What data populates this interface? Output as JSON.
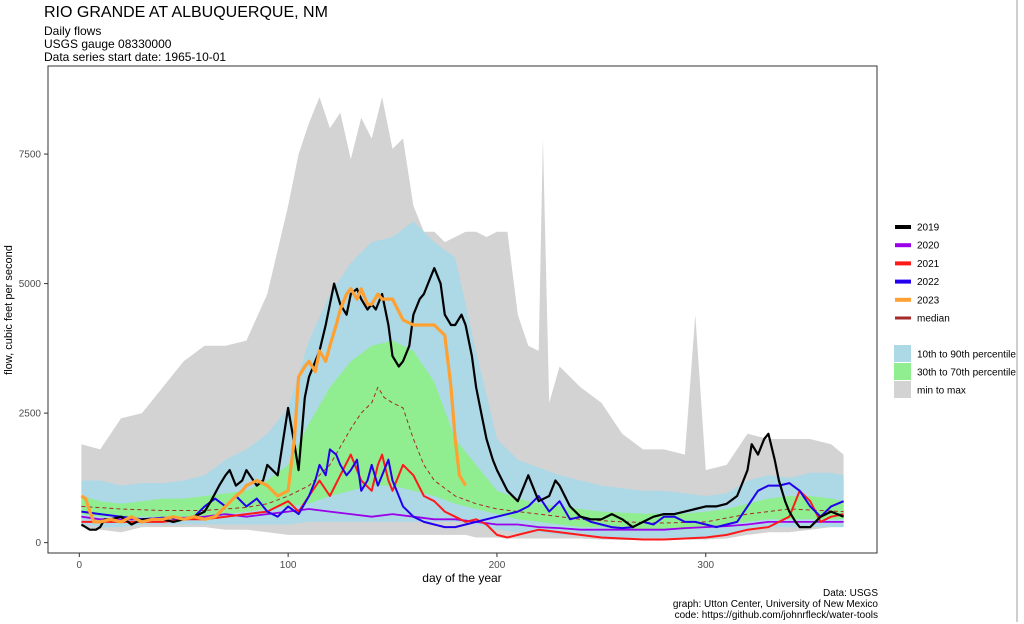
{
  "chart_data": {
    "type": "area",
    "title": "RIO GRANDE AT ALBUQUERQUE, NM",
    "subtitle": [
      "Daily flows",
      "USGS gauge  08330000",
      "Data series start date:  1965-10-01"
    ],
    "xlabel": "day of the year",
    "ylabel": "flow, cubic feet per second",
    "xlim": [
      -15,
      382
    ],
    "ylim": [
      -200,
      9200
    ],
    "x_ticks": [
      0,
      100,
      200,
      300
    ],
    "y_ticks": [
      0,
      2500,
      5000,
      7500
    ],
    "grid": true,
    "legend_position": "right",
    "legend_lines": [
      {
        "name": "2019",
        "color": "#000000"
      },
      {
        "name": "2020",
        "color": "#9b00e8"
      },
      {
        "name": "2021",
        "color": "#ff1a1a"
      },
      {
        "name": "2022",
        "color": "#2200ee"
      },
      {
        "name": "2023",
        "color": "#ffa032"
      },
      {
        "name": "median",
        "color": "#a52a2a"
      }
    ],
    "legend_bands": [
      {
        "name": "10th to 90th percentile",
        "color": "#add8e6"
      },
      {
        "name": "30th to 70th percentile",
        "color": "#90ee90"
      },
      {
        "name": "min to max",
        "color": "#d3d3d3"
      }
    ],
    "bands": {
      "min_max": {
        "x": [
          1,
          10,
          20,
          30,
          40,
          50,
          60,
          70,
          80,
          90,
          100,
          105,
          110,
          115,
          120,
          125,
          130,
          135,
          140,
          145,
          150,
          155,
          160,
          165,
          170,
          175,
          180,
          185,
          190,
          195,
          200,
          205,
          210,
          215,
          220,
          222,
          225,
          230,
          240,
          250,
          260,
          270,
          280,
          290,
          295,
          300,
          310,
          320,
          330,
          340,
          350,
          360,
          366
        ],
        "low": [
          300,
          250,
          200,
          300,
          300,
          300,
          300,
          250,
          250,
          200,
          150,
          150,
          150,
          150,
          150,
          150,
          150,
          150,
          150,
          150,
          150,
          150,
          150,
          150,
          150,
          150,
          150,
          150,
          100,
          100,
          100,
          80,
          80,
          80,
          80,
          80,
          80,
          80,
          80,
          60,
          50,
          50,
          50,
          60,
          60,
          60,
          80,
          150,
          200,
          200,
          250,
          300,
          300
        ],
        "high": [
          1900,
          1800,
          2400,
          2500,
          3000,
          3500,
          3800,
          3800,
          3900,
          4800,
          6500,
          7500,
          8100,
          8600,
          8000,
          8300,
          7400,
          8200,
          7800,
          8600,
          7600,
          7800,
          6500,
          6000,
          6000,
          5800,
          5900,
          6000,
          6000,
          5900,
          6000,
          6000,
          4400,
          3800,
          3700,
          7800,
          2700,
          3400,
          3000,
          2700,
          2100,
          1800,
          1800,
          1700,
          4400,
          1400,
          1500,
          2100,
          2000,
          2000,
          2000,
          1900,
          1700
        ]
      },
      "p10_p90": {
        "x": [
          1,
          10,
          20,
          30,
          40,
          50,
          60,
          70,
          80,
          90,
          100,
          110,
          120,
          130,
          140,
          150,
          160,
          170,
          180,
          190,
          200,
          210,
          220,
          230,
          240,
          250,
          260,
          270,
          280,
          290,
          300,
          310,
          320,
          330,
          340,
          350,
          360,
          366
        ],
        "low": [
          350,
          300,
          300,
          350,
          350,
          350,
          350,
          350,
          350,
          350,
          350,
          400,
          400,
          400,
          400,
          400,
          400,
          400,
          400,
          350,
          250,
          200,
          200,
          150,
          150,
          100,
          100,
          100,
          100,
          100,
          100,
          150,
          250,
          300,
          300,
          300,
          300,
          300
        ],
        "high": [
          1200,
          1200,
          1100,
          1150,
          1150,
          1200,
          1300,
          1600,
          1800,
          2100,
          2600,
          3900,
          4800,
          5400,
          5800,
          5900,
          6200,
          5800,
          5500,
          3700,
          2000,
          1600,
          1450,
          1300,
          1200,
          1100,
          1050,
          1000,
          1000,
          950,
          900,
          950,
          1200,
          1300,
          1250,
          1350,
          1350,
          1300
        ]
      },
      "p30_p70": {
        "x": [
          1,
          10,
          20,
          30,
          40,
          50,
          60,
          70,
          80,
          90,
          100,
          110,
          120,
          130,
          140,
          150,
          160,
          170,
          180,
          190,
          200,
          210,
          220,
          230,
          240,
          250,
          260,
          270,
          280,
          290,
          300,
          310,
          320,
          330,
          340,
          350,
          360,
          366
        ],
        "low": [
          550,
          500,
          500,
          500,
          500,
          500,
          520,
          550,
          600,
          650,
          700,
          750,
          900,
          1000,
          1100,
          1100,
          1000,
          900,
          750,
          650,
          550,
          450,
          400,
          350,
          300,
          300,
          250,
          250,
          250,
          250,
          300,
          350,
          400,
          450,
          450,
          450,
          450,
          450
        ],
        "high": [
          900,
          800,
          750,
          800,
          850,
          850,
          900,
          950,
          1000,
          1200,
          1500,
          2300,
          3000,
          3500,
          3800,
          3900,
          3700,
          3100,
          2000,
          1500,
          1000,
          850,
          750,
          700,
          650,
          600,
          580,
          560,
          560,
          560,
          600,
          650,
          750,
          850,
          900,
          900,
          850,
          800
        ]
      }
    },
    "series": [
      {
        "name": "median",
        "style": "dashed",
        "x": [
          1,
          20,
          40,
          60,
          80,
          90,
          100,
          110,
          120,
          130,
          135,
          140,
          143,
          146,
          150,
          155,
          160,
          165,
          170,
          180,
          190,
          200,
          220,
          240,
          260,
          280,
          300,
          320,
          340,
          366
        ],
        "y": [
          700,
          650,
          620,
          620,
          680,
          750,
          900,
          1100,
          1500,
          2200,
          2500,
          2700,
          3000,
          2800,
          2700,
          2600,
          2000,
          1500,
          1200,
          900,
          750,
          650,
          550,
          450,
          400,
          380,
          400,
          550,
          650,
          600
        ]
      },
      {
        "name": "2019",
        "style": "solid",
        "x": [
          1,
          3,
          5,
          8,
          10,
          12,
          15,
          20,
          25,
          30,
          35,
          40,
          45,
          50,
          55,
          60,
          63,
          67,
          70,
          72,
          75,
          78,
          80,
          85,
          88,
          90,
          95,
          100,
          103,
          105,
          108,
          110,
          115,
          118,
          120,
          122,
          125,
          128,
          130,
          133,
          135,
          138,
          140,
          142,
          145,
          148,
          150,
          153,
          155,
          158,
          160,
          163,
          165,
          168,
          170,
          173,
          175,
          178,
          180,
          183,
          185,
          188,
          190,
          193,
          195,
          198,
          200,
          205,
          210,
          215,
          220,
          225,
          228,
          230,
          235,
          240,
          245,
          250,
          255,
          260,
          265,
          270,
          275,
          280,
          285,
          290,
          295,
          300,
          305,
          310,
          315,
          318,
          320,
          322,
          325,
          328,
          330,
          333,
          335,
          338,
          340,
          343,
          345,
          350,
          355,
          360,
          366
        ],
        "y": [
          350,
          300,
          250,
          250,
          300,
          450,
          450,
          500,
          350,
          450,
          450,
          450,
          400,
          450,
          500,
          600,
          800,
          1100,
          1300,
          1400,
          1100,
          1200,
          1400,
          1100,
          1200,
          1500,
          1300,
          2600,
          1900,
          1400,
          2800,
          3200,
          3700,
          4200,
          4600,
          5000,
          4600,
          4400,
          4800,
          4900,
          4700,
          4500,
          4600,
          4500,
          4800,
          4200,
          3600,
          3400,
          3500,
          3800,
          4400,
          4700,
          4800,
          5100,
          5300,
          5000,
          4400,
          4200,
          4200,
          4400,
          4200,
          3600,
          3000,
          2400,
          2000,
          1600,
          1400,
          1000,
          800,
          1300,
          800,
          900,
          1200,
          1100,
          700,
          500,
          450,
          450,
          550,
          450,
          300,
          400,
          500,
          550,
          550,
          600,
          650,
          700,
          700,
          750,
          900,
          1200,
          1400,
          1900,
          1700,
          2000,
          2100,
          1600,
          1200,
          800,
          600,
          400,
          300,
          300,
          500,
          600,
          500
        ]
      },
      {
        "name": "2020",
        "style": "solid",
        "x": [
          1,
          10,
          20,
          30,
          40,
          50,
          60,
          70,
          80,
          90,
          100,
          110,
          120,
          130,
          140,
          150,
          160,
          170,
          180,
          190,
          200,
          210,
          220,
          230,
          240,
          250,
          260,
          270,
          280,
          290,
          300,
          310,
          320,
          330,
          340,
          350,
          360,
          366
        ],
        "y": [
          500,
          450,
          450,
          450,
          480,
          480,
          500,
          550,
          500,
          550,
          600,
          650,
          600,
          550,
          500,
          550,
          500,
          450,
          450,
          400,
          350,
          350,
          300,
          280,
          250,
          250,
          250,
          250,
          250,
          280,
          300,
          320,
          350,
          400,
          400,
          400,
          400,
          400
        ]
      },
      {
        "name": "2021",
        "style": "solid",
        "x": [
          1,
          10,
          20,
          30,
          40,
          50,
          60,
          70,
          80,
          90,
          100,
          105,
          110,
          115,
          120,
          125,
          130,
          135,
          140,
          143,
          145,
          148,
          150,
          155,
          160,
          165,
          170,
          175,
          180,
          185,
          190,
          195,
          200,
          205,
          210,
          220,
          230,
          240,
          250,
          260,
          270,
          280,
          290,
          300,
          310,
          320,
          330,
          340,
          345,
          350,
          355,
          360,
          366
        ],
        "y": [
          400,
          400,
          400,
          400,
          400,
          450,
          450,
          500,
          550,
          600,
          800,
          600,
          900,
          1200,
          900,
          1300,
          1700,
          1200,
          1000,
          1500,
          1700,
          1200,
          1000,
          1500,
          1300,
          900,
          800,
          600,
          500,
          400,
          450,
          350,
          150,
          100,
          150,
          250,
          200,
          150,
          100,
          80,
          60,
          60,
          80,
          100,
          150,
          250,
          300,
          500,
          1000,
          800,
          400,
          500,
          550
        ]
      },
      {
        "name": "2022",
        "style": "solid",
        "x": [
          1,
          10,
          20,
          30,
          40,
          50,
          55,
          60,
          65,
          70,
          75,
          80,
          85,
          90,
          95,
          100,
          105,
          110,
          113,
          115,
          118,
          120,
          123,
          125,
          128,
          130,
          133,
          135,
          138,
          140,
          143,
          145,
          148,
          150,
          155,
          160,
          165,
          170,
          175,
          180,
          190,
          200,
          210,
          215,
          220,
          225,
          230,
          235,
          240,
          245,
          250,
          255,
          260,
          265,
          270,
          275,
          280,
          285,
          290,
          295,
          300,
          305,
          310,
          315,
          320,
          325,
          330,
          335,
          340,
          345,
          350,
          355,
          360,
          366
        ],
        "y": [
          600,
          550,
          500,
          450,
          480,
          450,
          500,
          700,
          850,
          700,
          900,
          700,
          850,
          600,
          500,
          700,
          550,
          900,
          1200,
          1500,
          1300,
          1800,
          1700,
          1500,
          1300,
          1400,
          1600,
          1000,
          1200,
          1500,
          1100,
          1300,
          1600,
          1200,
          700,
          500,
          400,
          350,
          300,
          300,
          400,
          500,
          600,
          700,
          900,
          600,
          800,
          450,
          500,
          400,
          350,
          300,
          280,
          300,
          400,
          350,
          500,
          500,
          400,
          400,
          350,
          300,
          350,
          400,
          700,
          1000,
          1100,
          1100,
          1150,
          1000,
          700,
          500,
          700,
          800
        ]
      },
      {
        "name": "2023",
        "style": "solid",
        "x": [
          1,
          3,
          5,
          7,
          10,
          15,
          20,
          25,
          30,
          35,
          40,
          45,
          50,
          55,
          60,
          65,
          70,
          75,
          78,
          80,
          85,
          90,
          95,
          100,
          103,
          105,
          108,
          110,
          113,
          115,
          118,
          120,
          123,
          125,
          128,
          130,
          133,
          135,
          138,
          140,
          143,
          145,
          148,
          150,
          155,
          160,
          165,
          170,
          175,
          178,
          180,
          182,
          185
        ],
        "y": [
          900,
          850,
          600,
          400,
          400,
          450,
          400,
          500,
          400,
          450,
          450,
          500,
          450,
          500,
          450,
          500,
          700,
          900,
          1000,
          1100,
          1200,
          1100,
          900,
          1000,
          2000,
          3200,
          3400,
          3500,
          3300,
          3700,
          3500,
          3800,
          4200,
          4500,
          4800,
          4900,
          4700,
          4900,
          4600,
          4600,
          4800,
          4700,
          4700,
          4700,
          4300,
          4200,
          4200,
          4200,
          4000,
          3000,
          2000,
          1300,
          1100
        ]
      }
    ],
    "caption": [
      "Data: USGS",
      "graph: Utton Center, University of New Mexico",
      "code: https://github.com/johnrfleck/water-tools"
    ]
  },
  "colors": {
    "panel_border": "#333333",
    "grid": "#ebebeb",
    "median_line": "#a52a2a"
  }
}
